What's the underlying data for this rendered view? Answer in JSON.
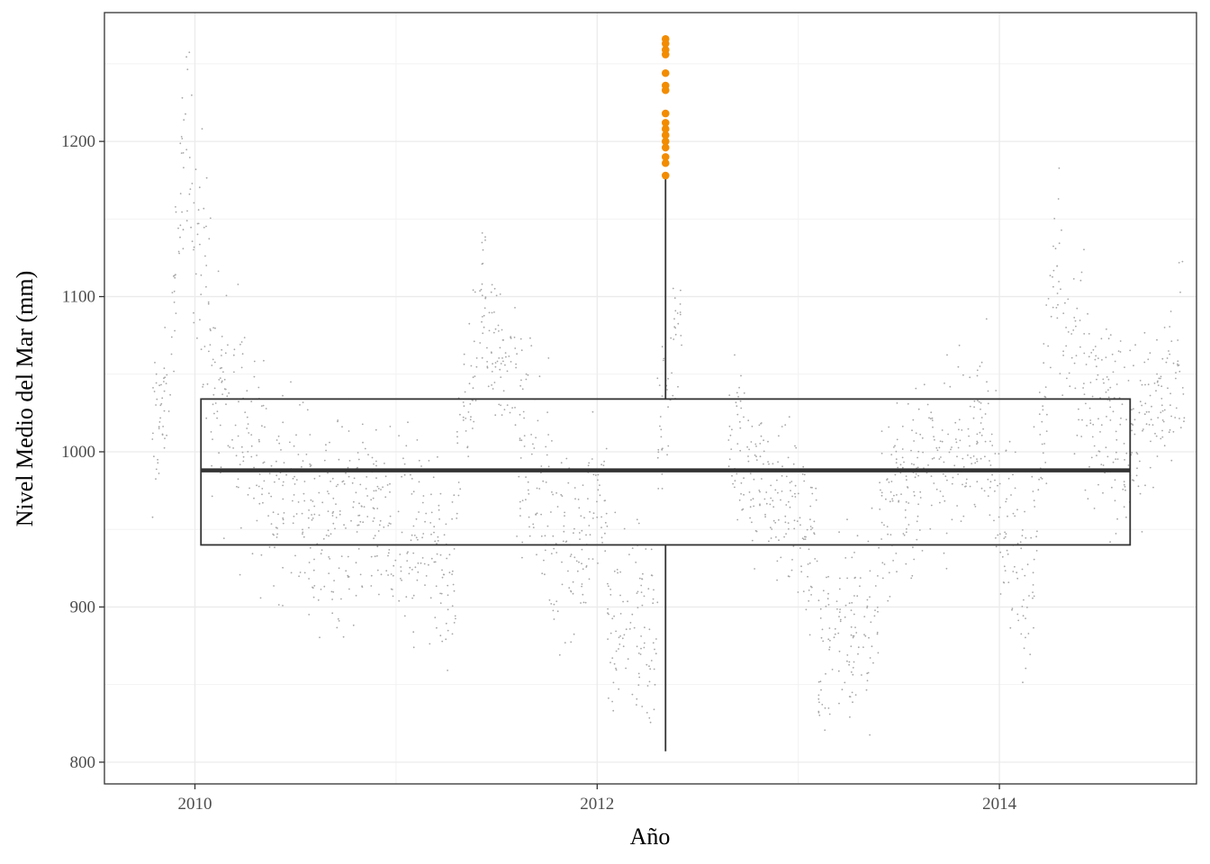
{
  "chart_data": {
    "type": "scatter",
    "title": "",
    "xlabel": "Año",
    "ylabel": "Nivel Medio del Mar (mm)",
    "xlim": [
      2009.55,
      2014.98
    ],
    "ylim": [
      786,
      1283
    ],
    "x_ticks": [
      2010,
      2012,
      2014
    ],
    "x_tick_labels": [
      "2010",
      "2012",
      "2014"
    ],
    "y_ticks": [
      800,
      900,
      1000,
      1100,
      1200
    ],
    "y_tick_labels": [
      "800",
      "900",
      "1000",
      "1100",
      "1200"
    ],
    "grid": true,
    "legend": "none",
    "jitter_point_color": "#a6a6a6",
    "outlier_color": "#f28c00",
    "box_color": "#333333",
    "boxplot": {
      "x_center": 2012.34,
      "x_left": 2010.03,
      "x_right": 2014.65,
      "min": 807,
      "q1": 940,
      "median": 988,
      "q3": 1034,
      "upper_whisker": 1176
    },
    "outliers": [
      1178,
      1186,
      1190,
      1196,
      1200,
      1204,
      1208,
      1212,
      1218,
      1233,
      1236,
      1244,
      1256,
      1259,
      1263,
      1266
    ],
    "series_segments": [
      {
        "x0": 2009.78,
        "x1": 2009.88,
        "y0": 1005,
        "y1": 1040,
        "spread": 45
      },
      {
        "x0": 2009.88,
        "x1": 2009.96,
        "y0": 1040,
        "y1": 1240,
        "spread": 60
      },
      {
        "x0": 2009.96,
        "x1": 2010.08,
        "y0": 1200,
        "y1": 1080,
        "spread": 80
      },
      {
        "x0": 2010.08,
        "x1": 2010.35,
        "y0": 1050,
        "y1": 985,
        "spread": 75
      },
      {
        "x0": 2010.35,
        "x1": 2010.85,
        "y0": 975,
        "y1": 955,
        "spread": 65
      },
      {
        "x0": 2010.85,
        "x1": 2011.3,
        "y0": 960,
        "y1": 920,
        "spread": 60
      },
      {
        "x0": 2011.3,
        "x1": 2011.45,
        "y0": 960,
        "y1": 1120,
        "spread": 55
      },
      {
        "x0": 2011.45,
        "x1": 2011.6,
        "y0": 1080,
        "y1": 1040,
        "spread": 50
      },
      {
        "x0": 2011.6,
        "x1": 2011.9,
        "y0": 1010,
        "y1": 920,
        "spread": 75
      },
      {
        "x0": 2011.9,
        "x1": 2012.05,
        "y0": 930,
        "y1": 980,
        "spread": 55
      },
      {
        "x0": 2012.05,
        "x1": 2012.3,
        "y0": 900,
        "y1": 880,
        "spread": 60
      },
      {
        "x0": 2012.3,
        "x1": 2012.42,
        "y0": 1010,
        "y1": 1100,
        "spread": 60
      },
      {
        "x0": 2012.65,
        "x1": 2012.8,
        "y0": 1010,
        "y1": 980,
        "spread": 55
      },
      {
        "x0": 2012.8,
        "x1": 2013.1,
        "y0": 985,
        "y1": 940,
        "spread": 55
      },
      {
        "x0": 2013.1,
        "x1": 2013.4,
        "y0": 870,
        "y1": 900,
        "spread": 60
      },
      {
        "x0": 2013.4,
        "x1": 2013.95,
        "y0": 960,
        "y1": 1020,
        "spread": 55
      },
      {
        "x0": 2013.95,
        "x1": 2014.15,
        "y0": 1000,
        "y1": 900,
        "spread": 60
      },
      {
        "x0": 2014.15,
        "x1": 2014.3,
        "y0": 920,
        "y1": 1150,
        "spread": 60
      },
      {
        "x0": 2014.3,
        "x1": 2014.65,
        "y0": 1060,
        "y1": 1000,
        "spread": 70
      },
      {
        "x0": 2014.65,
        "x1": 2014.92,
        "y0": 1000,
        "y1": 1060,
        "spread": 55
      }
    ]
  }
}
